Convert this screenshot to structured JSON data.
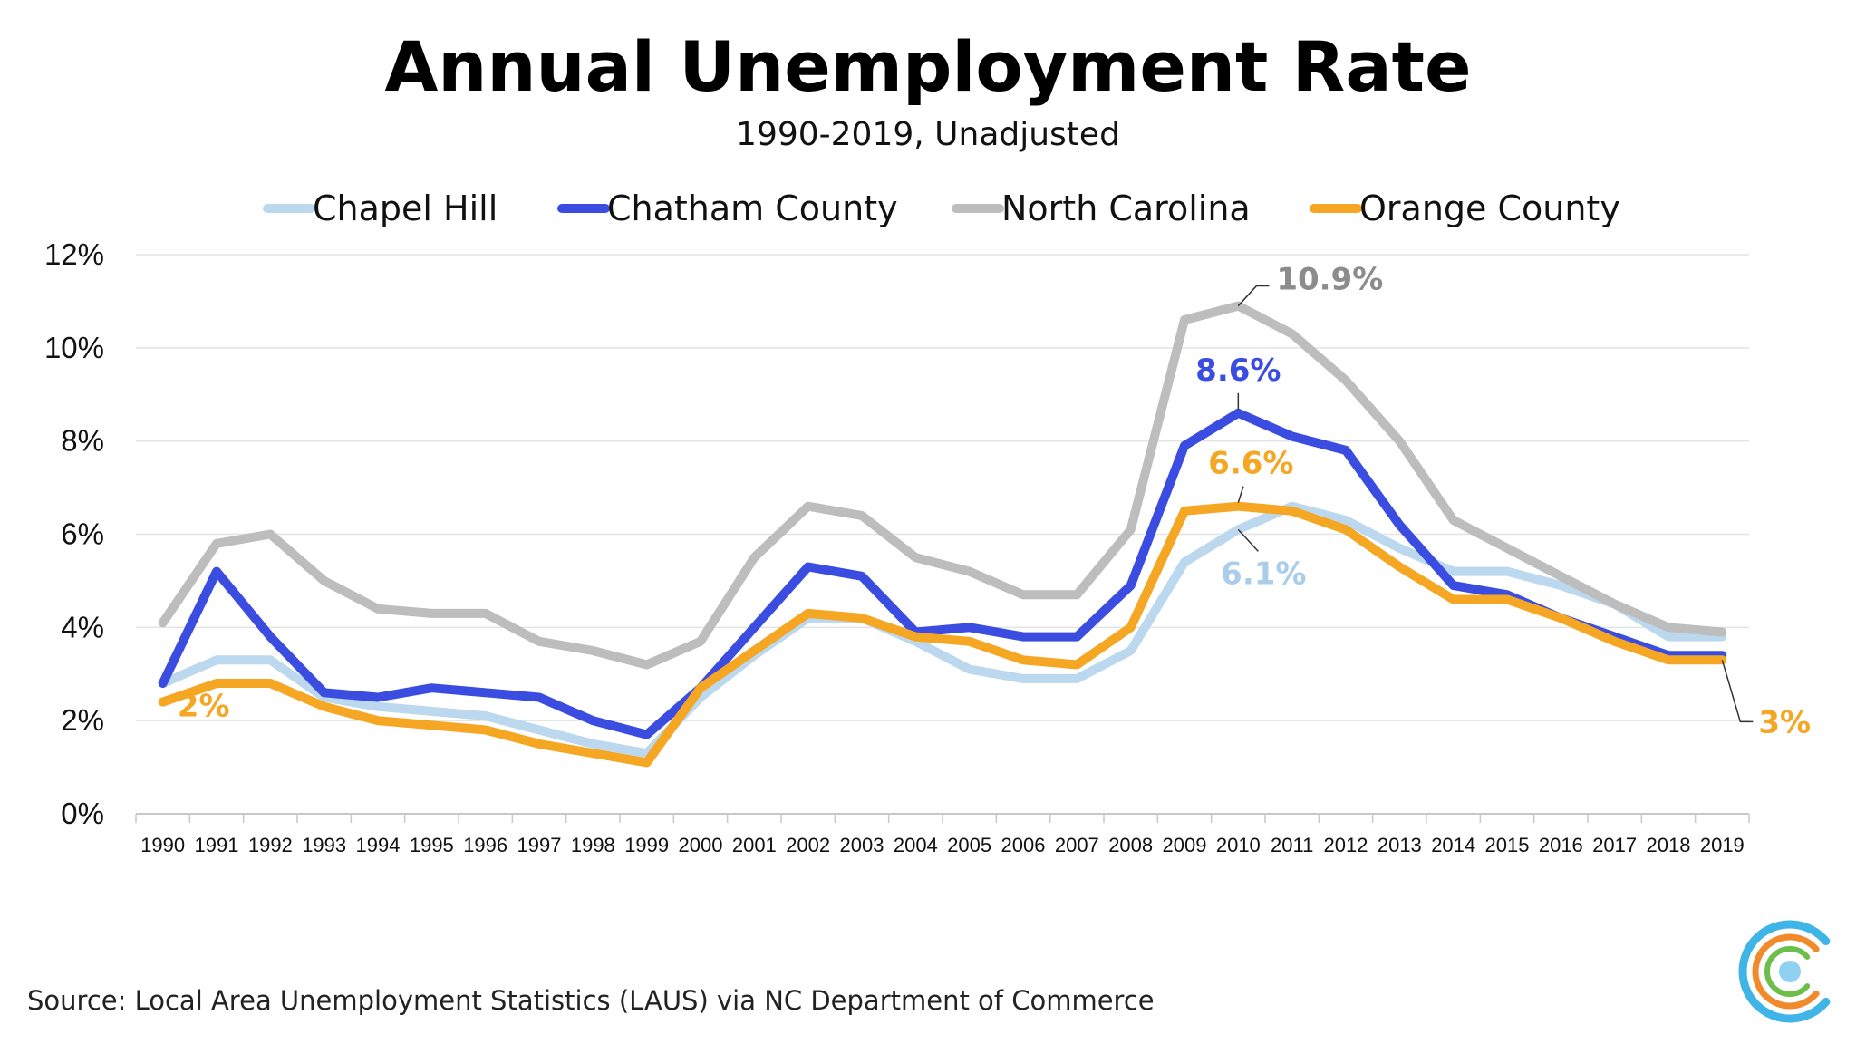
{
  "colors": {
    "Chapel Hill": "#bcd8ee",
    "Chatham County": "#3b4de0",
    "North Carolina": "#bdbdbd",
    "Orange County": "#f5a623",
    "annot_gray": "#8c8c8c",
    "annot_lightblue": "#a9cdea"
  },
  "source": "Source: Local Area Unemployment Statistics (LAUS) via NC Department of Commerce",
  "logo": {
    "icon": "concentric-c-logo-icon"
  },
  "chart_data": {
    "type": "line",
    "title": "Annual Unemployment Rate",
    "subtitle": "1990-2019, Unadjusted",
    "xlabel": "",
    "ylabel": "",
    "ylim": [
      0,
      12
    ],
    "yticks": [
      "0%",
      "2%",
      "4%",
      "6%",
      "8%",
      "10%",
      "12%"
    ],
    "grid": true,
    "legend_position": "top",
    "categories": [
      "1990",
      "1991",
      "1992",
      "1993",
      "1994",
      "1995",
      "1996",
      "1997",
      "1998",
      "1999",
      "2000",
      "2001",
      "2002",
      "2003",
      "2004",
      "2005",
      "2006",
      "2007",
      "2008",
      "2009",
      "2010",
      "2011",
      "2012",
      "2013",
      "2014",
      "2015",
      "2016",
      "2017",
      "2018",
      "2019"
    ],
    "series": [
      {
        "name": "Chapel Hill",
        "values": [
          2.8,
          3.3,
          3.3,
          2.5,
          2.3,
          2.2,
          2.1,
          1.8,
          1.5,
          1.3,
          2.5,
          3.4,
          4.2,
          4.2,
          3.7,
          3.1,
          2.9,
          2.9,
          3.5,
          5.4,
          6.1,
          6.6,
          6.3,
          5.7,
          5.2,
          5.2,
          4.9,
          4.5,
          3.8,
          3.8
        ]
      },
      {
        "name": "Chatham County",
        "values": [
          2.8,
          5.2,
          3.8,
          2.6,
          2.5,
          2.7,
          2.6,
          2.5,
          2.0,
          1.7,
          2.7,
          4.0,
          5.3,
          5.1,
          3.9,
          4.0,
          3.8,
          3.8,
          4.9,
          7.9,
          8.6,
          8.1,
          7.8,
          6.2,
          4.9,
          4.7,
          4.2,
          3.8,
          3.4,
          3.4
        ]
      },
      {
        "name": "North Carolina",
        "values": [
          4.1,
          5.8,
          6.0,
          5.0,
          4.4,
          4.3,
          4.3,
          3.7,
          3.5,
          3.2,
          3.7,
          5.5,
          6.6,
          6.4,
          5.5,
          5.2,
          4.7,
          4.7,
          6.1,
          10.6,
          10.9,
          10.3,
          9.3,
          8.0,
          6.3,
          5.7,
          5.1,
          4.5,
          4.0,
          3.9
        ]
      },
      {
        "name": "Orange County",
        "values": [
          2.4,
          2.8,
          2.8,
          2.3,
          2.0,
          1.9,
          1.8,
          1.5,
          1.3,
          1.1,
          2.7,
          3.5,
          4.3,
          4.2,
          3.8,
          3.7,
          3.3,
          3.2,
          4.0,
          6.5,
          6.6,
          6.5,
          6.1,
          5.3,
          4.6,
          4.6,
          4.2,
          3.7,
          3.3,
          3.3
        ]
      }
    ],
    "annotations": [
      {
        "text": "10.9%",
        "series": "North Carolina",
        "x": "2010",
        "y": 10.9,
        "color_key": "annot_gray"
      },
      {
        "text": "8.6%",
        "series": "Chatham County",
        "x": "2010",
        "y": 8.6,
        "color_key": "Chatham County"
      },
      {
        "text": "6.6%",
        "series": "Orange County",
        "x": "2010",
        "y": 6.6,
        "color_key": "Orange County"
      },
      {
        "text": "6.1%",
        "series": "Chapel Hill",
        "x": "2010",
        "y": 6.1,
        "color_key": "annot_lightblue"
      },
      {
        "text": "2%",
        "series": "Orange County",
        "x": "1990",
        "y": 2.4,
        "color_key": "Orange County"
      },
      {
        "text": "3%",
        "series": "Orange County",
        "x": "2019",
        "y": 3.3,
        "color_key": "Orange County"
      }
    ]
  }
}
